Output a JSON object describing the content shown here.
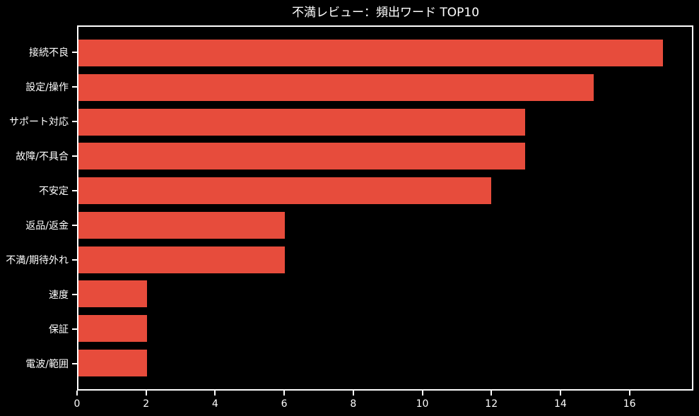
{
  "chart_data": {
    "type": "bar",
    "orientation": "horizontal",
    "title": "不満レビュー：頻出ワード TOP10",
    "categories": [
      "接続不良",
      "設定/操作",
      "サポート対応",
      "故障/不具合",
      "不安定",
      "返品/返金",
      "不満/期待外れ",
      "速度",
      "保証",
      "電波/範囲"
    ],
    "values": [
      17,
      15,
      13,
      13,
      12,
      6,
      6,
      2,
      2,
      2
    ],
    "xlabel": "",
    "ylabel": "",
    "x_ticks": [
      0,
      2,
      4,
      6,
      8,
      10,
      12,
      14,
      16
    ],
    "xlim": [
      0,
      17.85
    ],
    "grid": false,
    "legend": null,
    "bar_color": "#e74c3c",
    "background_color": "#000000",
    "spine_color": "#ffffff",
    "text_color": "#ffffff"
  }
}
